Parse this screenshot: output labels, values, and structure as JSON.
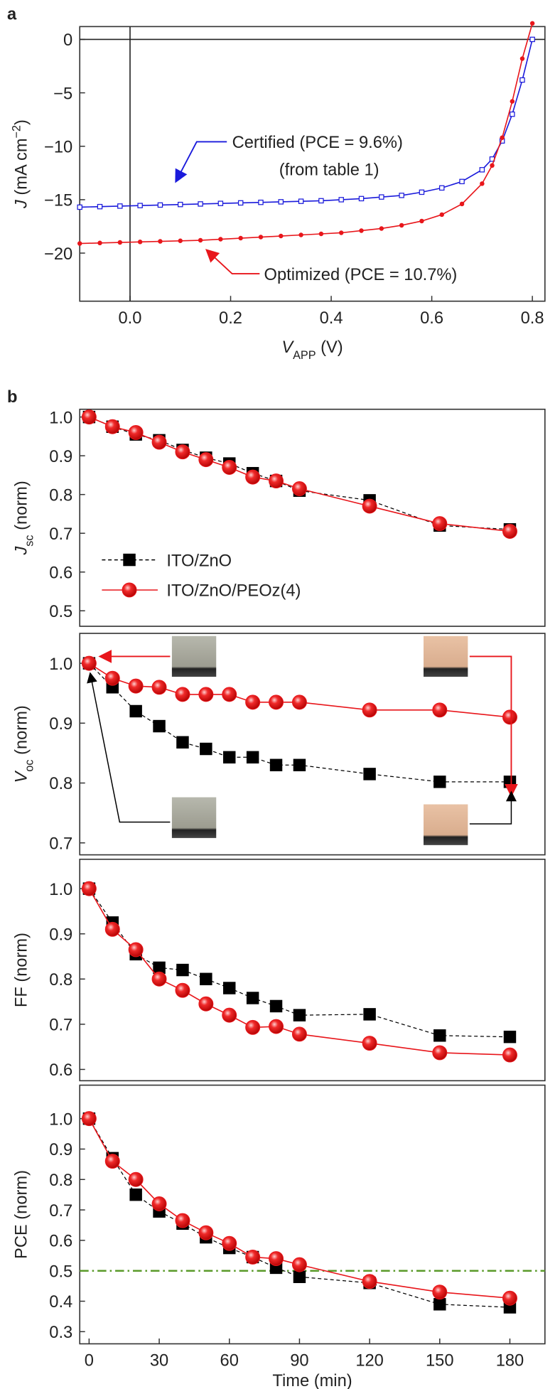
{
  "chart_data": [
    {
      "type": "line",
      "panel_label": "a",
      "ylabel": [
        "J",
        " (mA cm",
        "−2",
        ")"
      ],
      "xlabel": [
        "V",
        "APP",
        " (V)"
      ],
      "xlim": [
        -0.1,
        0.825
      ],
      "ylim": [
        -24.5,
        1.2
      ],
      "xticks": [
        {
          "value": 0,
          "label": "0.0"
        },
        0.2,
        0.4,
        0.6,
        0.8
      ],
      "yticks": [
        0,
        {
          "value": -5,
          "label": "−5"
        },
        {
          "value": -10,
          "label": "−10"
        },
        {
          "value": -15,
          "label": "−15"
        },
        {
          "value": -20,
          "label": "−20"
        }
      ],
      "zero_lines": true,
      "x": [
        -0.1,
        -0.06,
        -0.02,
        0.02,
        0.06,
        0.1,
        0.14,
        0.18,
        0.22,
        0.26,
        0.3,
        0.34,
        0.38,
        0.42,
        0.46,
        0.5,
        0.54,
        0.58,
        0.62,
        0.66,
        0.7,
        0.72,
        0.74,
        0.76,
        0.78,
        0.8
      ],
      "series": [
        {
          "color": "#1a1adb",
          "marker": "open-square",
          "line": "solid",
          "values": [
            -15.7,
            -15.65,
            -15.6,
            -15.55,
            -15.5,
            -15.45,
            -15.4,
            -15.35,
            -15.3,
            -15.25,
            -15.2,
            -15.15,
            -15.1,
            -15.0,
            -14.9,
            -14.75,
            -14.6,
            -14.3,
            -13.9,
            -13.3,
            -12.2,
            -11.2,
            -9.5,
            -7.0,
            -3.8,
            0
          ]
        },
        {
          "color": "#e8161b",
          "marker": "dot",
          "line": "solid",
          "values": [
            -19.1,
            -19.05,
            -19.0,
            -18.95,
            -18.9,
            -18.85,
            -18.8,
            -18.7,
            -18.6,
            -18.5,
            -18.4,
            -18.3,
            -18.2,
            -18.1,
            -17.9,
            -17.7,
            -17.4,
            -17.0,
            -16.4,
            -15.4,
            -13.5,
            -11.8,
            -9.2,
            -5.8,
            -1.8,
            1.5
          ]
        }
      ],
      "annotations": [
        {
          "text": "Certified (PCE = 9.6%)",
          "color": "#1a1adb"
        },
        {
          "text": "(from table 1)",
          "color": "#1a1adb"
        },
        {
          "text": "Optimized (PCE = 10.7%)",
          "color": "#e8161b"
        }
      ]
    },
    {
      "type": "line",
      "panel_label": "b",
      "ylabel": [
        "J",
        "sc",
        " (norm)"
      ],
      "xlim": [
        -4,
        195
      ],
      "ylim": [
        0.46,
        1.02
      ],
      "yticks": [
        0.5,
        0.6,
        0.7,
        0.8,
        0.9,
        {
          "value": 1,
          "label": "1.0"
        }
      ],
      "legend": true,
      "x": [
        0,
        10,
        20,
        30,
        40,
        50,
        60,
        70,
        80,
        90,
        120,
        150,
        180
      ],
      "series": [
        {
          "name": "ITO/ZnO",
          "color": "#000000",
          "marker": "square",
          "line": "dashed",
          "values": [
            1.0,
            0.975,
            0.955,
            0.94,
            0.915,
            0.895,
            0.88,
            0.855,
            0.835,
            0.81,
            0.785,
            0.72,
            0.71
          ]
        },
        {
          "name": "ITO/ZnO/PEOz(4)",
          "color": "#e8161b",
          "marker": "circle",
          "line": "solid",
          "values": [
            1.0,
            0.975,
            0.96,
            0.935,
            0.91,
            0.89,
            0.87,
            0.845,
            0.835,
            0.815,
            0.77,
            0.725,
            0.705
          ]
        }
      ]
    },
    {
      "type": "line",
      "ylabel": [
        "V",
        "oc",
        " (norm)"
      ],
      "xlim": [
        -4,
        195
      ],
      "ylim": [
        0.68,
        1.05
      ],
      "yticks": [
        0.7,
        0.8,
        0.9,
        {
          "value": 1,
          "label": "1.0"
        }
      ],
      "insets": true,
      "x": [
        0,
        10,
        20,
        30,
        40,
        50,
        60,
        70,
        80,
        90,
        120,
        150,
        180
      ],
      "series": [
        {
          "color": "#000000",
          "marker": "square",
          "line": "dashed",
          "values": [
            1.0,
            0.96,
            0.92,
            0.895,
            0.868,
            0.857,
            0.843,
            0.843,
            0.83,
            0.83,
            0.815,
            0.802,
            0.802
          ]
        },
        {
          "color": "#e8161b",
          "marker": "circle",
          "line": "solid",
          "values": [
            1.0,
            0.975,
            0.962,
            0.96,
            0.948,
            0.948,
            0.948,
            0.935,
            0.935,
            0.935,
            0.922,
            0.922,
            0.91
          ]
        }
      ]
    },
    {
      "type": "line",
      "ylabel": [
        "FF (norm)"
      ],
      "xlim": [
        -4,
        195
      ],
      "ylim": [
        0.575,
        1.065
      ],
      "yticks": [
        0.6,
        0.7,
        0.8,
        0.9,
        {
          "value": 1,
          "label": "1.0"
        }
      ],
      "x": [
        0,
        10,
        20,
        30,
        40,
        50,
        60,
        70,
        80,
        90,
        120,
        150,
        180
      ],
      "series": [
        {
          "color": "#000000",
          "marker": "square",
          "line": "dashed",
          "values": [
            1.0,
            0.925,
            0.855,
            0.825,
            0.82,
            0.8,
            0.78,
            0.758,
            0.74,
            0.72,
            0.722,
            0.675,
            0.672
          ]
        },
        {
          "color": "#e8161b",
          "marker": "circle",
          "line": "solid",
          "values": [
            1.0,
            0.91,
            0.865,
            0.8,
            0.775,
            0.745,
            0.72,
            0.693,
            0.695,
            0.678,
            0.658,
            0.637,
            0.632
          ]
        }
      ]
    },
    {
      "type": "line",
      "ylabel": [
        "PCE (norm)"
      ],
      "xlabel": [
        "Time (min)"
      ],
      "xlim": [
        -4,
        195
      ],
      "ylim": [
        0.26,
        1.11
      ],
      "xticks": [
        0,
        30,
        60,
        90,
        120,
        150,
        180
      ],
      "yticks": [
        0.3,
        0.4,
        0.5,
        0.6,
        0.7,
        0.8,
        0.9,
        {
          "value": 1,
          "label": "1.0"
        }
      ],
      "hline": {
        "value": 0.5,
        "color": "#5a9a2a"
      },
      "x": [
        0,
        10,
        20,
        30,
        40,
        50,
        60,
        70,
        80,
        90,
        120,
        150,
        180
      ],
      "series": [
        {
          "color": "#000000",
          "marker": "square",
          "line": "dashed",
          "values": [
            1.0,
            0.87,
            0.75,
            0.695,
            0.655,
            0.61,
            0.575,
            0.545,
            0.51,
            0.48,
            0.46,
            0.39,
            0.38
          ]
        },
        {
          "color": "#e8161b",
          "marker": "circle",
          "line": "solid",
          "values": [
            1.0,
            0.86,
            0.8,
            0.72,
            0.665,
            0.625,
            0.59,
            0.545,
            0.54,
            0.52,
            0.465,
            0.43,
            0.41
          ]
        }
      ]
    }
  ]
}
